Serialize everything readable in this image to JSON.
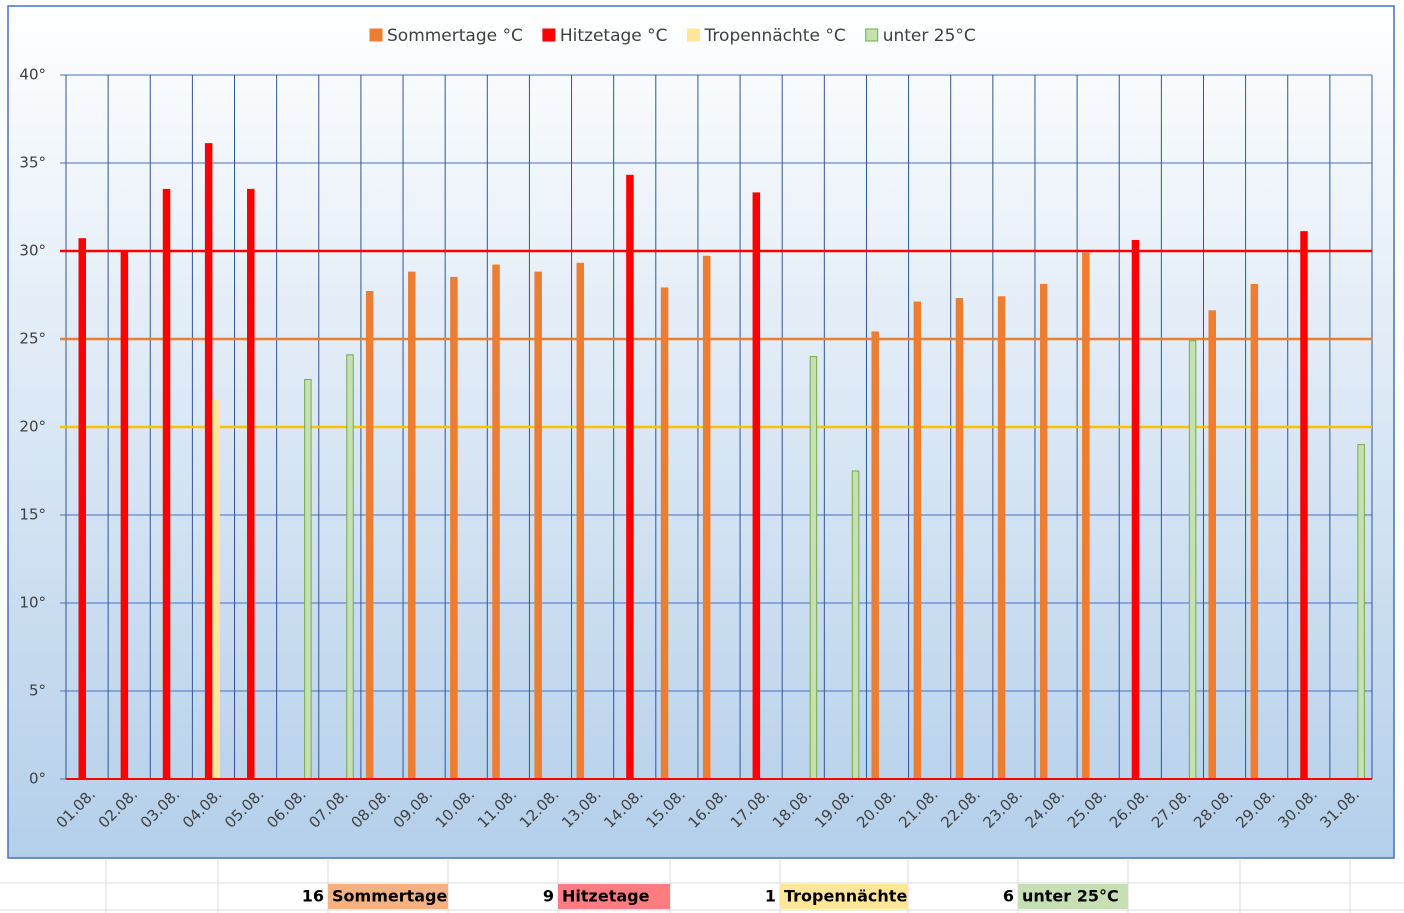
{
  "chart_data": {
    "type": "bar",
    "categories": [
      "01.08.",
      "02.08.",
      "03.08.",
      "04.08.",
      "05.08.",
      "06.08.",
      "07.08.",
      "08.08.",
      "09.08.",
      "10.08.",
      "11.08.",
      "12.08.",
      "13.08.",
      "14.08.",
      "15.08.",
      "16.08.",
      "17.08.",
      "18.08.",
      "19.08.",
      "20.08.",
      "21.08.",
      "22.08.",
      "23.08.",
      "24.08.",
      "25.08.",
      "26.08.",
      "27.08.",
      "28.08.",
      "29.08.",
      "30.08.",
      "31.08."
    ],
    "series": [
      {
        "name": "Sommertage °C",
        "color": "#ed7d31",
        "values": [
          null,
          null,
          null,
          null,
          null,
          null,
          null,
          27.7,
          28.8,
          28.5,
          29.2,
          28.8,
          29.3,
          null,
          27.9,
          29.7,
          null,
          null,
          null,
          25.4,
          27.1,
          27.3,
          27.4,
          28.1,
          29.9,
          null,
          null,
          26.6,
          28.1,
          null,
          null
        ]
      },
      {
        "name": "Hitzetage °C",
        "color": "#ff0000",
        "values": [
          30.7,
          30.0,
          33.5,
          36.1,
          33.5,
          null,
          null,
          null,
          null,
          null,
          null,
          null,
          null,
          34.3,
          null,
          null,
          33.3,
          null,
          null,
          null,
          null,
          null,
          null,
          null,
          null,
          30.6,
          null,
          null,
          null,
          31.1,
          null
        ]
      },
      {
        "name": "Tropennächte °C",
        "color": "#ffe699",
        "values": [
          null,
          null,
          null,
          21.5,
          null,
          null,
          null,
          null,
          null,
          null,
          null,
          null,
          null,
          null,
          null,
          null,
          null,
          null,
          null,
          null,
          null,
          null,
          null,
          null,
          null,
          null,
          null,
          null,
          null,
          null,
          null
        ]
      },
      {
        "name": "unter 25°C",
        "color": "#c6e0b4",
        "values": [
          null,
          null,
          null,
          null,
          null,
          22.7,
          24.1,
          null,
          null,
          null,
          null,
          null,
          null,
          null,
          null,
          null,
          null,
          24.0,
          17.5,
          null,
          null,
          null,
          null,
          null,
          null,
          null,
          24.9,
          null,
          null,
          null,
          19.0
        ]
      }
    ],
    "ylim": [
      0,
      40
    ],
    "yticks": [
      {
        "value": 0,
        "label": "0°"
      },
      {
        "value": 5,
        "label": "5°"
      },
      {
        "value": 10,
        "label": "10°"
      },
      {
        "value": 15,
        "label": "15°"
      },
      {
        "value": 20,
        "label": "20°"
      },
      {
        "value": 25,
        "label": "25°"
      },
      {
        "value": 30,
        "label": "30°"
      },
      {
        "value": 35,
        "label": "35°"
      },
      {
        "value": 40,
        "label": "40°"
      }
    ],
    "grid": true,
    "legend": "top",
    "reference_lines": [
      {
        "value": 30,
        "color": "#ff0000"
      },
      {
        "value": 25,
        "color": "#ed7d31"
      },
      {
        "value": 20,
        "color": "#ffc000"
      }
    ]
  },
  "summary": [
    {
      "count": "16",
      "label": "Sommertage",
      "color": "#f4b183"
    },
    {
      "count": "9",
      "label": "Hitzetage",
      "color": "#ff7c80"
    },
    {
      "count": "1",
      "label": "Tropennächte",
      "color": "#ffe699"
    },
    {
      "count": "6",
      "label": "unter 25°C",
      "color": "#c6e0b4"
    }
  ]
}
